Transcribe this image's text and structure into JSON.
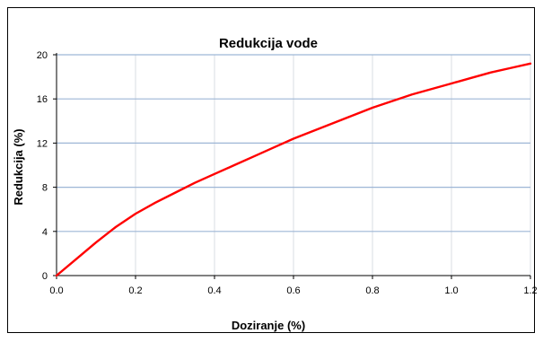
{
  "chart_data": {
    "type": "line",
    "title": "Redukcija vode",
    "xlabel": "Doziranje  (%)",
    "ylabel": "Redukcija  (%)",
    "xlim": [
      0,
      1.2
    ],
    "ylim": [
      0,
      20
    ],
    "x_ticks": [
      "0.0",
      "0.2",
      "0.4",
      "0.6",
      "0.8",
      "1.0",
      "1.2"
    ],
    "y_ticks": [
      "0",
      "4",
      "8",
      "12",
      "16",
      "20"
    ],
    "grid": true,
    "legend": "none",
    "series": [
      {
        "color": "#ff0000",
        "x": [
          0.0,
          0.05,
          0.1,
          0.15,
          0.2,
          0.25,
          0.3,
          0.35,
          0.4,
          0.45,
          0.5,
          0.55,
          0.6,
          0.65,
          0.7,
          0.75,
          0.8,
          0.85,
          0.9,
          0.95,
          1.0,
          1.05,
          1.1,
          1.15,
          1.2
        ],
        "y": [
          0.0,
          1.5,
          3.0,
          4.4,
          5.6,
          6.6,
          7.5,
          8.4,
          9.2,
          10.0,
          10.8,
          11.6,
          12.4,
          13.1,
          13.8,
          14.5,
          15.2,
          15.8,
          16.4,
          16.9,
          17.4,
          17.9,
          18.4,
          18.8,
          19.2
        ]
      }
    ]
  },
  "colors": {
    "major_grid": "#9db6d6",
    "minor_grid": "#d9dde3",
    "axis": "#000000",
    "line": "#ff0000"
  }
}
